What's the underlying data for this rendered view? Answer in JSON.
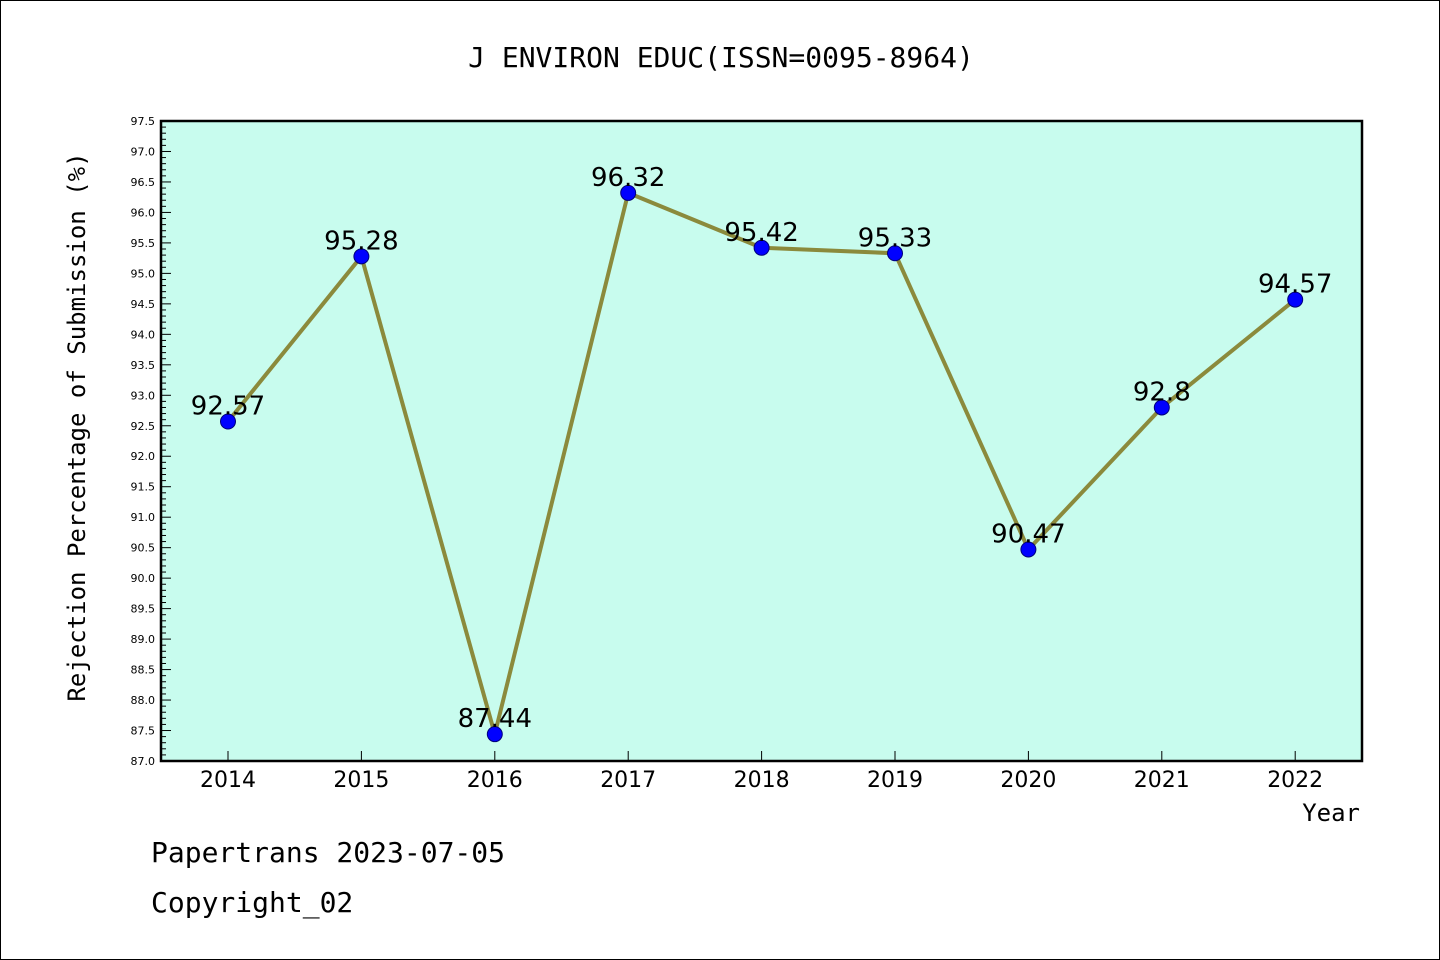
{
  "chart_data": {
    "type": "line",
    "title": "J ENVIRON EDUC(ISSN=0095-8964)",
    "xlabel": "Year",
    "ylabel": "Rejection Percentage of Submission (%)",
    "categories": [
      "2014",
      "2015",
      "2016",
      "2017",
      "2018",
      "2019",
      "2020",
      "2021",
      "2022"
    ],
    "values": [
      92.57,
      95.28,
      87.44,
      96.32,
      95.42,
      95.33,
      90.47,
      92.8,
      94.57
    ],
    "data_labels": [
      "92.57",
      "95.28",
      "87.44",
      "96.32",
      "95.42",
      "95.33",
      "90.47",
      "92.8",
      "94.57"
    ],
    "ylim": [
      87.0,
      97.5
    ],
    "yticks": [
      "87.0",
      "87.5",
      "88.0",
      "88.5",
      "89.0",
      "89.5",
      "90.0",
      "90.5",
      "91.0",
      "91.5",
      "92.0",
      "92.5",
      "93.0",
      "93.5",
      "94.0",
      "94.5",
      "95.0",
      "95.5",
      "96.0",
      "96.5",
      "97.0",
      "97.5"
    ],
    "grid": false,
    "legend": "none",
    "colors": {
      "plot_background": "#c8fcee",
      "line": "#8b8a3c",
      "marker": "#0000ff",
      "axis": "#000000"
    }
  },
  "footer": {
    "line1": "Papertrans 2023-07-05",
    "line2": "Copyright_02"
  }
}
